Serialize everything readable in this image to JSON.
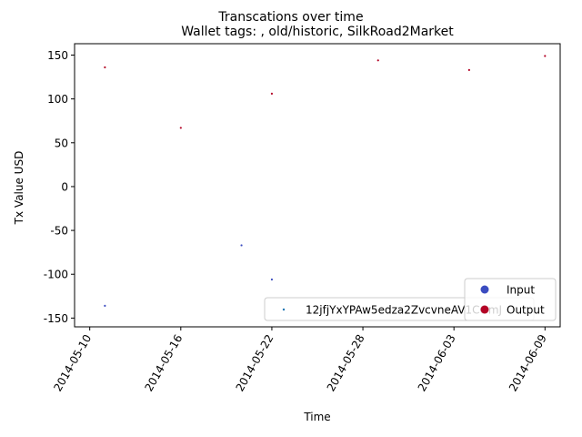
{
  "chart_data": {
    "type": "scatter",
    "suptitle": "Transcations over time",
    "title": "Wallet tags: , old/historic, SilkRoad2Market",
    "xlabel": "Time",
    "ylabel": "Tx Value USD",
    "xlim": [
      "2014-05-09",
      "2014-06-10"
    ],
    "ylim": [
      -160,
      163
    ],
    "x_ticks": [
      "2014-05-10",
      "2014-05-16",
      "2014-05-22",
      "2014-05-28",
      "2014-06-03",
      "2014-06-09"
    ],
    "y_ticks": [
      -150,
      -100,
      -50,
      0,
      50,
      100,
      150
    ],
    "grid": false,
    "colors": {
      "input": "#3b4cc0",
      "output": "#b40426",
      "wallet": "#1f77b4"
    },
    "legends": [
      {
        "placement": "lower-center",
        "entries": [
          {
            "label": "12jfjYxYPAw5edza2ZvcvneAV1CGmJ",
            "color": "#1f77b4"
          }
        ]
      },
      {
        "placement": "lower-right",
        "entries": [
          {
            "label": "Input",
            "color": "#3b4cc0"
          },
          {
            "label": "Output",
            "color": "#b40426"
          }
        ]
      }
    ],
    "series": [
      {
        "name": "Input",
        "points": [
          {
            "x": "2014-05-11",
            "y": -136
          },
          {
            "x": "2014-05-20",
            "y": -67
          },
          {
            "x": "2014-05-22",
            "y": -106
          }
        ]
      },
      {
        "name": "Output",
        "points": [
          {
            "x": "2014-05-11",
            "y": 136
          },
          {
            "x": "2014-05-16",
            "y": 67
          },
          {
            "x": "2014-05-22",
            "y": 106
          },
          {
            "x": "2014-05-29",
            "y": 144
          },
          {
            "x": "2014-06-04",
            "y": 133
          },
          {
            "x": "2014-06-09",
            "y": 149
          }
        ]
      }
    ]
  }
}
